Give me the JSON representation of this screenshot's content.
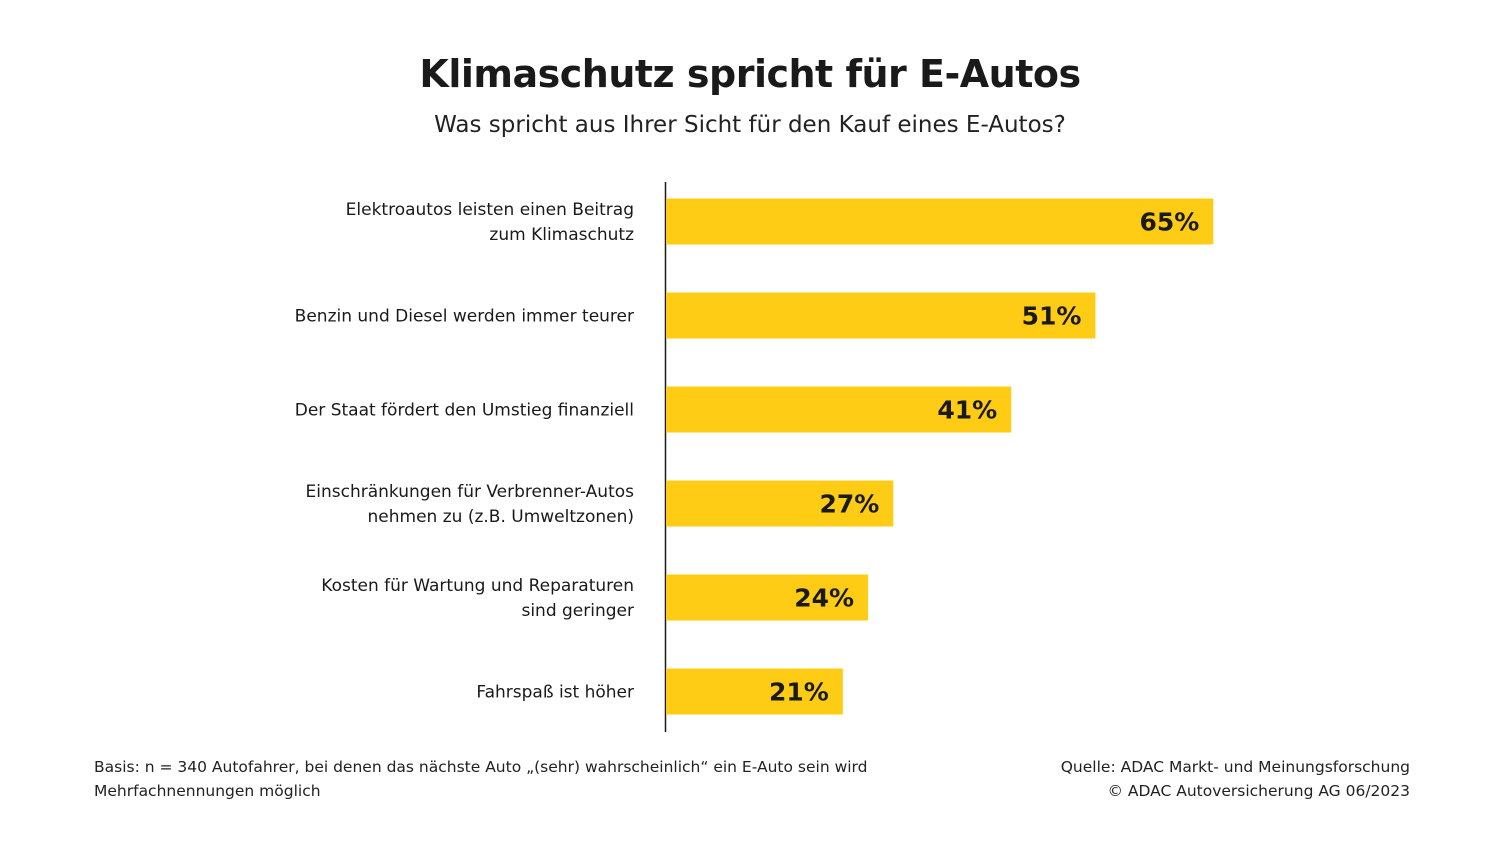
{
  "chart_data": {
    "type": "bar",
    "orientation": "horizontal",
    "title": "Klimaschutz spricht für E-Autos",
    "subtitle": "Was spricht aus Ihrer Sicht für den Kauf eines E-Autos?",
    "categories": [
      [
        "Elektroautos leisten einen Beitrag",
        "zum Klimaschutz"
      ],
      [
        "Benzin und Diesel werden immer teurer"
      ],
      [
        "Der Staat fördert den Umstieg finanziell"
      ],
      [
        "Einschränkungen für Verbrenner-Autos",
        "nehmen zu (z.B. Umweltzonen)"
      ],
      [
        "Kosten für Wartung und Reparaturen",
        "sind geringer"
      ],
      [
        "Fahrspaß ist höher"
      ]
    ],
    "values": [
      65,
      51,
      41,
      27,
      24,
      21
    ],
    "data_labels": [
      "65%",
      "51%",
      "41%",
      "27%",
      "24%",
      "21%"
    ],
    "unit": "%",
    "xlim": [
      0,
      100
    ],
    "grid": false,
    "legend": "none",
    "bar_color": "#FFCC15"
  },
  "footer": {
    "basis": "Basis: n = 340 Autofahrer, bei denen das nächste Auto „(sehr) wahrscheinlich“ ein E-Auto sein wird",
    "multi": "Mehrfachnennungen möglich",
    "source": "Quelle: ADAC Markt- und Meinungsforschung",
    "copyright": "© ADAC Autoversicherung AG 06/2023"
  }
}
